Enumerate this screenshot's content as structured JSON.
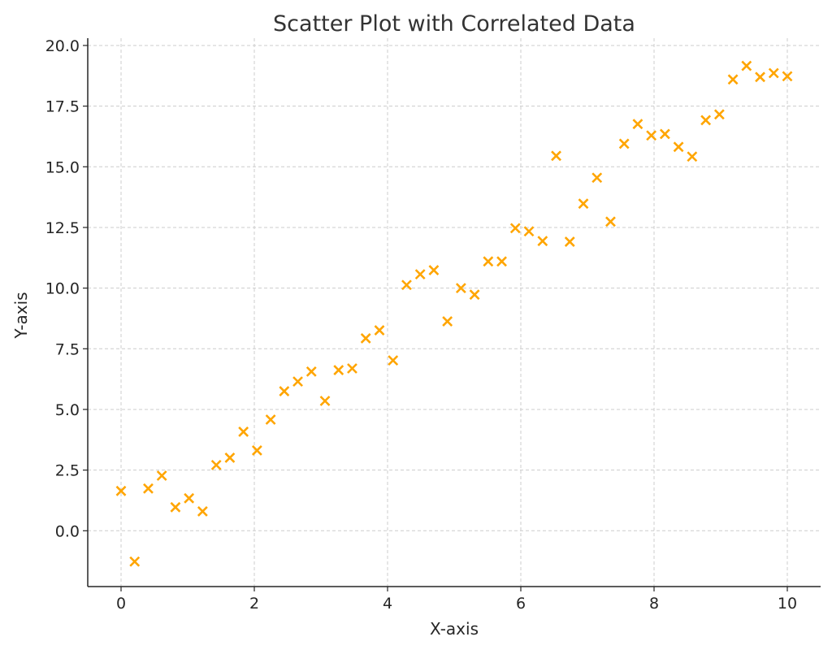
{
  "chart_data": {
    "type": "scatter",
    "title": "Scatter Plot with Correlated Data",
    "xlabel": "X-axis",
    "ylabel": "Y-axis",
    "xlim": [
      -0.5,
      10.5
    ],
    "ylim": [
      -2.3,
      20.3
    ],
    "xticks": [
      0,
      2,
      4,
      6,
      8,
      10
    ],
    "xtick_labels": [
      "0",
      "2",
      "4",
      "6",
      "8",
      "10"
    ],
    "yticks": [
      0,
      2.5,
      5,
      7.5,
      10,
      12.5,
      15,
      17.5,
      20
    ],
    "ytick_labels": [
      "0.0",
      "2.5",
      "5.0",
      "7.5",
      "10.0",
      "12.5",
      "15.0",
      "17.5",
      "20.0"
    ],
    "grid": true,
    "marker": "x",
    "color": "#FFA500",
    "x": [
      0,
      0.204,
      0.408,
      0.612,
      0.816,
      1.02,
      1.224,
      1.429,
      1.633,
      1.837,
      2.041,
      2.245,
      2.449,
      2.653,
      2.857,
      3.061,
      3.265,
      3.469,
      3.673,
      3.878,
      4.082,
      4.286,
      4.49,
      4.694,
      4.898,
      5.102,
      5.306,
      5.51,
      5.714,
      5.918,
      6.122,
      6.327,
      6.531,
      6.735,
      6.939,
      7.143,
      7.347,
      7.551,
      7.755,
      7.959,
      8.163,
      8.367,
      8.571,
      8.776,
      8.98,
      9.184,
      9.388,
      9.592,
      9.796,
      10
    ],
    "y": [
      1.64,
      -1.27,
      1.74,
      2.27,
      0.97,
      1.34,
      0.8,
      2.71,
      3.01,
      4.08,
      3.31,
      4.58,
      5.75,
      6.15,
      6.56,
      5.35,
      6.62,
      6.69,
      7.93,
      8.26,
      7.02,
      10.13,
      10.57,
      10.74,
      8.63,
      10.0,
      9.73,
      11.1,
      11.1,
      12.47,
      12.34,
      11.94,
      15.45,
      11.91,
      13.48,
      14.55,
      12.74,
      15.95,
      16.76,
      16.29,
      16.35,
      15.82,
      15.42,
      16.92,
      17.16,
      18.6,
      19.16,
      18.7,
      18.86,
      18.73
    ]
  }
}
